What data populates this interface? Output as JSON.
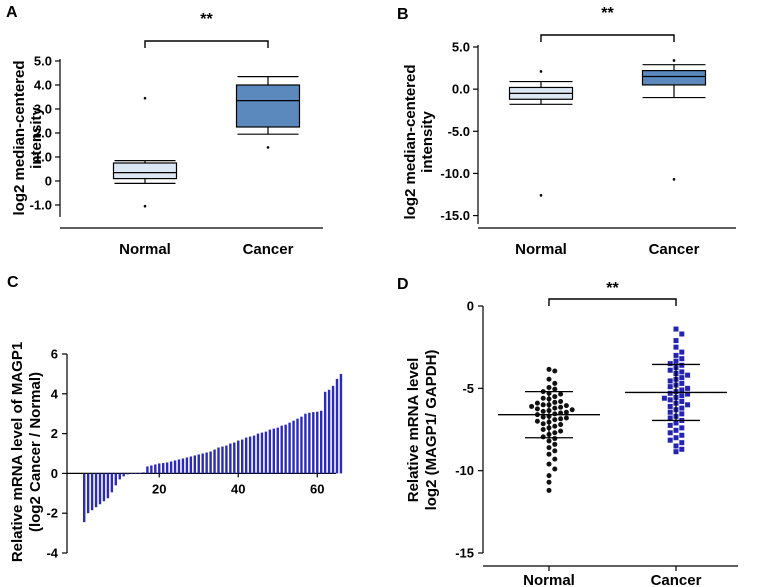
{
  "chart_data": [
    {
      "panel": "A",
      "type": "box",
      "categories": [
        "Normal",
        "Cancer"
      ],
      "ylabel": [
        "log2 median-centered",
        "intensity"
      ],
      "ylim": [
        -1.5,
        5.0
      ],
      "yticks": [
        -1.0,
        0.0,
        1.0,
        2.0,
        3.0,
        4.0,
        5.0
      ],
      "ytick_labels": [
        "-1.0",
        "0",
        "1.0",
        "2.0",
        "3.0",
        "4.0",
        "5.0"
      ],
      "boxes": [
        {
          "name": "Normal",
          "whisker_low": -0.1,
          "q1": 0.1,
          "median": 0.35,
          "q3": 0.75,
          "whisker_high": 0.85,
          "outliers": [
            3.45,
            -1.05
          ],
          "color": "#dce7f4"
        },
        {
          "name": "Cancer",
          "whisker_low": 1.95,
          "q1": 2.25,
          "median": 3.35,
          "q3": 4.0,
          "whisker_high": 4.35,
          "outliers": [
            1.4
          ],
          "color": "#5b89bd"
        }
      ],
      "significance": "**"
    },
    {
      "panel": "B",
      "type": "box",
      "categories": [
        "Normal",
        "Cancer"
      ],
      "ylabel": [
        "log2 median-centered",
        "intensity"
      ],
      "ylim": [
        -16.0,
        5.0
      ],
      "yticks": [
        -15.0,
        -10.0,
        -5.0,
        0.0,
        5.0
      ],
      "ytick_labels": [
        "-15.0",
        "-10.0",
        "-5.0",
        "0.0",
        "5.0"
      ],
      "boxes": [
        {
          "name": "Normal",
          "whisker_low": -1.8,
          "q1": -1.2,
          "median": -0.5,
          "q3": 0.2,
          "whisker_high": 0.9,
          "outliers": [
            2.1,
            -12.6
          ],
          "color": "#dce7f4"
        },
        {
          "name": "Cancer",
          "whisker_low": -1.0,
          "q1": 0.5,
          "median": 1.5,
          "q3": 2.2,
          "whisker_high": 2.9,
          "outliers": [
            3.4,
            -10.7
          ],
          "color": "#5b89bd"
        }
      ],
      "significance": "**"
    },
    {
      "panel": "C",
      "type": "bar",
      "ylabel": [
        "Relative mRNA level of MAGP1",
        "(log2 Cancer / Normal)"
      ],
      "ylim": [
        -4,
        6
      ],
      "yticks": [
        -4,
        -2,
        0,
        2,
        4,
        6
      ],
      "xticks": [
        20,
        40,
        60
      ],
      "bar_color": "#2b2bb8",
      "values": [
        -2.45,
        -2.0,
        -1.85,
        -1.7,
        -1.55,
        -1.4,
        -1.25,
        -0.95,
        -0.6,
        -0.3,
        -0.15,
        -0.05,
        -0.02,
        0.0,
        0.0,
        0.05,
        0.35,
        0.4,
        0.45,
        0.5,
        0.52,
        0.55,
        0.6,
        0.65,
        0.7,
        0.75,
        0.8,
        0.85,
        0.9,
        0.95,
        1.0,
        1.05,
        1.1,
        1.2,
        1.3,
        1.35,
        1.4,
        1.5,
        1.55,
        1.65,
        1.7,
        1.8,
        1.85,
        1.9,
        2.0,
        2.05,
        2.1,
        2.2,
        2.25,
        2.3,
        2.4,
        2.45,
        2.55,
        2.65,
        2.75,
        2.85,
        3.0,
        3.05,
        3.08,
        3.1,
        3.15,
        4.1,
        4.2,
        4.4,
        4.75,
        5.0
      ]
    },
    {
      "panel": "D",
      "type": "scatter",
      "categories": [
        "Normal",
        "Cancer"
      ],
      "ylabel": [
        "Relative mRNA level",
        "log2 (MAGP1/ GAPDH)"
      ],
      "ylim": [
        -15,
        0
      ],
      "yticks": [
        -15,
        -10,
        -5,
        0
      ],
      "series": [
        {
          "name": "Normal",
          "color": "#111111",
          "mean": -6.6,
          "sd_low": -8.0,
          "sd_high": -5.2,
          "values": [
            -3.85,
            -3.95,
            -4.45,
            -4.7,
            -4.95,
            -5.05,
            -5.2,
            -5.3,
            -5.35,
            -5.5,
            -5.6,
            -5.65,
            -5.8,
            -5.85,
            -5.9,
            -6.0,
            -6.0,
            -6.05,
            -6.1,
            -6.15,
            -6.2,
            -6.25,
            -6.3,
            -6.35,
            -6.4,
            -6.45,
            -6.5,
            -6.55,
            -6.6,
            -6.7,
            -6.75,
            -6.8,
            -6.85,
            -6.9,
            -7.0,
            -7.05,
            -7.15,
            -7.2,
            -7.3,
            -7.4,
            -7.5,
            -7.6,
            -7.7,
            -7.8,
            -7.95,
            -8.05,
            -8.2,
            -8.4,
            -8.6,
            -8.8,
            -9.0,
            -9.3,
            -9.6,
            -9.9,
            -10.3,
            -10.7,
            -11.2
          ]
        },
        {
          "name": "Cancer",
          "color": "#2424b0",
          "mean": -5.25,
          "sd_low": -6.95,
          "sd_high": -3.55,
          "values": [
            -1.4,
            -1.7,
            -2.1,
            -2.5,
            -2.8,
            -3.0,
            -3.2,
            -3.35,
            -3.5,
            -3.6,
            -3.75,
            -3.9,
            -4.0,
            -4.1,
            -4.2,
            -4.35,
            -4.45,
            -4.55,
            -4.7,
            -4.8,
            -4.9,
            -5.0,
            -5.1,
            -5.2,
            -5.3,
            -5.35,
            -5.45,
            -5.55,
            -5.6,
            -5.7,
            -5.8,
            -5.9,
            -6.0,
            -6.1,
            -6.2,
            -6.3,
            -6.45,
            -6.55,
            -6.7,
            -6.8,
            -6.95,
            -7.1,
            -7.25,
            -7.4,
            -7.55,
            -7.7,
            -7.85,
            -8.0,
            -8.15,
            -8.3,
            -8.5,
            -8.7,
            -8.85
          ]
        }
      ],
      "significance": "**"
    }
  ]
}
